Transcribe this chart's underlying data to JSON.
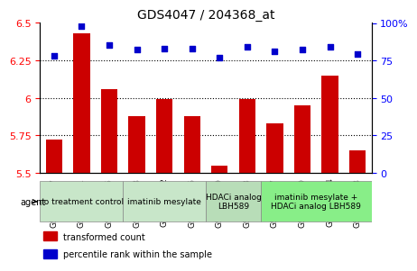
{
  "title": "GDS4047 / 204368_at",
  "samples": [
    "GSM521987",
    "GSM521991",
    "GSM521995",
    "GSM521988",
    "GSM521992",
    "GSM521996",
    "GSM521989",
    "GSM521993",
    "GSM521997",
    "GSM521990",
    "GSM521994",
    "GSM521998"
  ],
  "bar_values": [
    5.72,
    6.43,
    6.06,
    5.88,
    5.99,
    5.88,
    5.55,
    5.99,
    5.83,
    5.95,
    6.15,
    5.65
  ],
  "scatter_values": [
    78,
    98,
    85,
    82,
    83,
    83,
    77,
    84,
    81,
    82,
    84,
    79
  ],
  "ylim_left": [
    5.5,
    6.5
  ],
  "ylim_right": [
    0,
    100
  ],
  "yticks_left": [
    5.5,
    5.75,
    6.0,
    6.25,
    6.5
  ],
  "yticks_right": [
    0,
    25,
    50,
    75,
    100
  ],
  "ytick_labels_left": [
    "5.5",
    "5.75",
    "6",
    "6.25",
    "6.5"
  ],
  "ytick_labels_right": [
    "0",
    "25",
    "50",
    "75",
    "100%"
  ],
  "hlines": [
    5.75,
    6.0,
    6.25
  ],
  "bar_color": "#cc0000",
  "scatter_color": "#0000cc",
  "agents": [
    {
      "label": "no treatment control",
      "start": 0,
      "end": 3
    },
    {
      "label": "imatinib mesylate",
      "start": 3,
      "end": 6
    },
    {
      "label": "HDACi analog\nLBH589",
      "start": 6,
      "end": 8
    },
    {
      "label": "imatinib mesylate +\nHDACi analog LBH589",
      "start": 8,
      "end": 12
    }
  ],
  "agent_bg_colors": [
    "#c8e6c9",
    "#c8e6c9",
    "#a5d6a7",
    "#69f0ae"
  ],
  "legend_items": [
    {
      "label": "transformed count",
      "color": "#cc0000"
    },
    {
      "label": "percentile rank within the sample",
      "color": "#0000cc"
    }
  ],
  "agent_label": "agent",
  "bar_width": 0.6
}
